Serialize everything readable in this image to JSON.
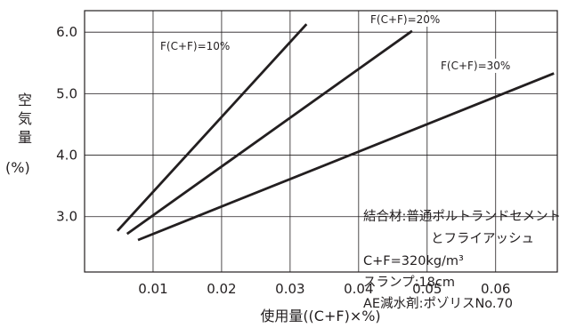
{
  "chart_data": {
    "type": "line",
    "xlabel": "使用量((C+F)×%)",
    "ylabel": [
      "空",
      "気",
      "量",
      "(%)"
    ],
    "xlim": [
      0,
      0.069
    ],
    "ylim": [
      2.1,
      6.35
    ],
    "xticks": [
      0.01,
      0.02,
      0.03,
      0.04,
      0.05,
      0.06
    ],
    "xtick_labels": [
      "0.01",
      "0.02",
      "0.03",
      "0.04",
      "0.05",
      "0.06"
    ],
    "yticks": [
      3.0,
      4.0,
      5.0,
      6.0
    ],
    "ytick_labels": [
      "3.0",
      "4.0",
      "5.0",
      "6.0"
    ],
    "grid": true,
    "series": [
      {
        "name": "F(C+F)=10%",
        "x": [
          0.0048,
          0.0324
        ],
        "y": [
          2.77,
          6.13
        ]
      },
      {
        "name": "F(C+F)=20%",
        "x": [
          0.0062,
          0.0478
        ],
        "y": [
          2.72,
          6.02
        ]
      },
      {
        "name": "F(C+F)=30%",
        "x": [
          0.0078,
          0.0685
        ],
        "y": [
          2.62,
          5.33
        ]
      }
    ],
    "annotations": [
      "結合材:普通ポルトランドセメント",
      "とフライアッシュ",
      "C+F=320kg/m³",
      "スランプ:18cm",
      "AE減水剤:ポゾリスNo.70"
    ]
  }
}
